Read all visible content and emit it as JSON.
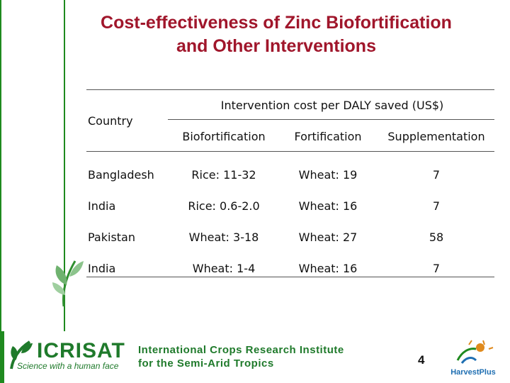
{
  "slide": {
    "title_line1": "Cost-effectiveness of Zinc Biofortification",
    "title_line2": "and Other Interventions",
    "page_number": "4"
  },
  "table": {
    "row_header": "Country",
    "group_header": "Intervention cost per DALY saved (US$)",
    "columns": [
      "Biofortification",
      "Fortification",
      "Supplementation"
    ],
    "rows": [
      {
        "country": "Bangladesh",
        "bio": "Rice: 11-32",
        "fort": "Wheat: 19",
        "supp": "7"
      },
      {
        "country": "India",
        "bio": "Rice: 0.6-2.0",
        "fort": "Wheat: 16",
        "supp": "7"
      },
      {
        "country": "Pakistan",
        "bio": "Wheat: 3-18",
        "fort": "Wheat: 27",
        "supp": "58"
      },
      {
        "country": "India",
        "bio": "Wheat: 1-4",
        "fort": "Wheat: 16",
        "supp": "7"
      }
    ]
  },
  "footer": {
    "logo_text": "ICRISAT",
    "tagline": "Science with a human face",
    "institute_line1": "International Crops Research Institute",
    "institute_line2": "for the Semi-Arid Tropics",
    "partner_logo_text": "HarvestPlus"
  },
  "colors": {
    "title": "#a0162b",
    "brand_green": "#1f8a1f"
  },
  "icons": [
    "leaf-icon",
    "icrisat-logo-icon",
    "harvestplus-logo-icon"
  ]
}
